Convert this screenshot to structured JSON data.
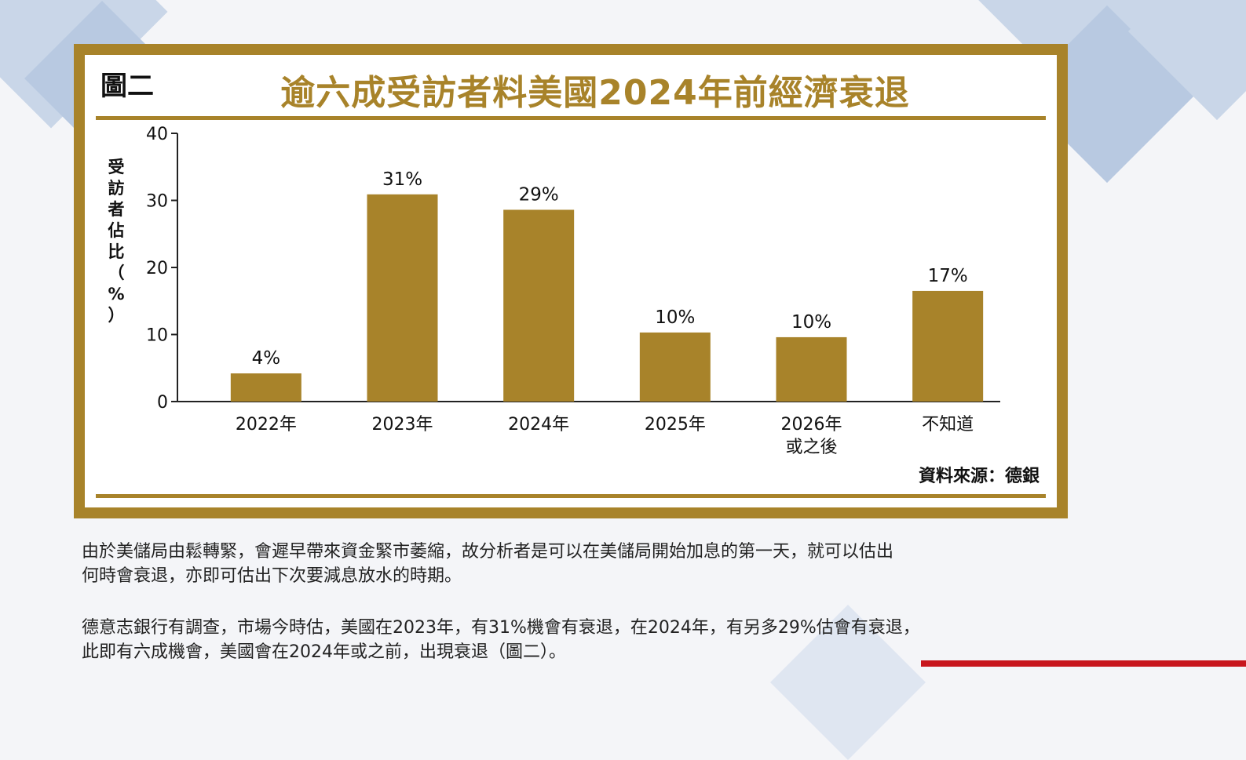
{
  "figure_label": "圖二",
  "title": "逾六成受訪者料美國2024年前經濟衰退",
  "source": "資料來源：德銀",
  "paragraphs": [
    {
      "line1": "由於美儲局由鬆轉緊，會遲早帶來資金緊市萎縮，故分析者是可以在美儲局開始加息的第一天，就可以估出",
      "line2": "何時會衰退，亦即可估出下次要減息放水的時期。"
    },
    {
      "line1": "德意志銀行有調查，市場今時估，美國在2023年，有31%機會有衰退，在2024年，有另多29%估會有衰退，",
      "line2": "此即有六成機會，美國會在2024年或之前，出現衰退（圖二）。"
    }
  ],
  "chart_data": {
    "type": "bar",
    "categories": [
      [
        "2022年"
      ],
      [
        "2023年"
      ],
      [
        "2024年"
      ],
      [
        "2025年"
      ],
      [
        "2026年",
        "或之後"
      ],
      [
        "不知道"
      ]
    ],
    "values": [
      4.2,
      30.9,
      28.6,
      10.3,
      9.6,
      16.5
    ],
    "data_labels": [
      "4%",
      "31%",
      "29%",
      "10%",
      "10%",
      "17%"
    ],
    "ylabel_chars": [
      "受",
      "訪",
      "者",
      "佔",
      "比",
      "（",
      "%",
      "）"
    ],
    "ylim": [
      0,
      40
    ],
    "yticks": [
      0,
      10,
      20,
      30,
      40
    ],
    "bar_color": "#a8832a",
    "grid": false
  }
}
